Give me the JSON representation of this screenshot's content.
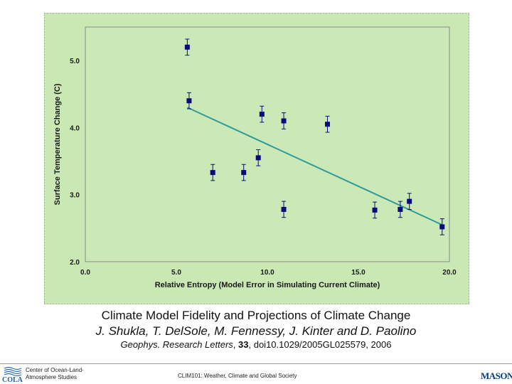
{
  "chart_data": {
    "type": "scatter",
    "xlabel": "Relative Entropy (Model Error in Simulating Current Climate)",
    "ylabel": "Surface Temperature Change (C)",
    "xlim": [
      0,
      20
    ],
    "ylim": [
      2,
      5.5
    ],
    "x_ticks": [
      "0.0",
      "5.0",
      "10.0",
      "15.0",
      "20.0"
    ],
    "y_ticks": [
      "2.0",
      "3.0",
      "4.0",
      "5.0"
    ],
    "grid": false,
    "legend": "none",
    "points": [
      {
        "x": 5.6,
        "y": 5.2,
        "err": 0.12
      },
      {
        "x": 5.7,
        "y": 4.4,
        "err": 0.12
      },
      {
        "x": 7.0,
        "y": 3.33,
        "err": 0.12
      },
      {
        "x": 8.7,
        "y": 3.33,
        "err": 0.12
      },
      {
        "x": 9.5,
        "y": 3.55,
        "err": 0.12
      },
      {
        "x": 9.7,
        "y": 4.2,
        "err": 0.12
      },
      {
        "x": 10.9,
        "y": 2.78,
        "err": 0.12
      },
      {
        "x": 10.9,
        "y": 4.1,
        "err": 0.12
      },
      {
        "x": 13.3,
        "y": 4.05,
        "err": 0.12
      },
      {
        "x": 15.9,
        "y": 2.77,
        "err": 0.12
      },
      {
        "x": 17.3,
        "y": 2.78,
        "err": 0.12
      },
      {
        "x": 17.8,
        "y": 2.9,
        "err": 0.12
      },
      {
        "x": 19.6,
        "y": 2.52,
        "err": 0.12
      }
    ],
    "trendline": {
      "x": [
        5.6,
        19.6
      ],
      "y": [
        4.3,
        2.55
      ]
    },
    "colors": {
      "marker": "#0a0a7a",
      "trend": "#2e9a9a",
      "frame": "#c9e8b4",
      "plot_bg": "#cbe9b6"
    }
  },
  "caption": {
    "title": "Climate Model Fidelity and Projections of Climate Change",
    "authors": "J. Shukla, T. DelSole, M. Fennessy, J. Kinter and D. Paolino",
    "journal": "Geophys. Research Letters",
    "volume": "33",
    "doi": "doi10.1029/2005GL025579, 2006"
  },
  "footer": {
    "org_line1": "Center of Ocean-Land-",
    "org_line2": "Atmosphere Studies",
    "org_logo": "COLA",
    "course": "CLIM101: Weather, Climate and Global Society",
    "university_logo": "MASON"
  }
}
